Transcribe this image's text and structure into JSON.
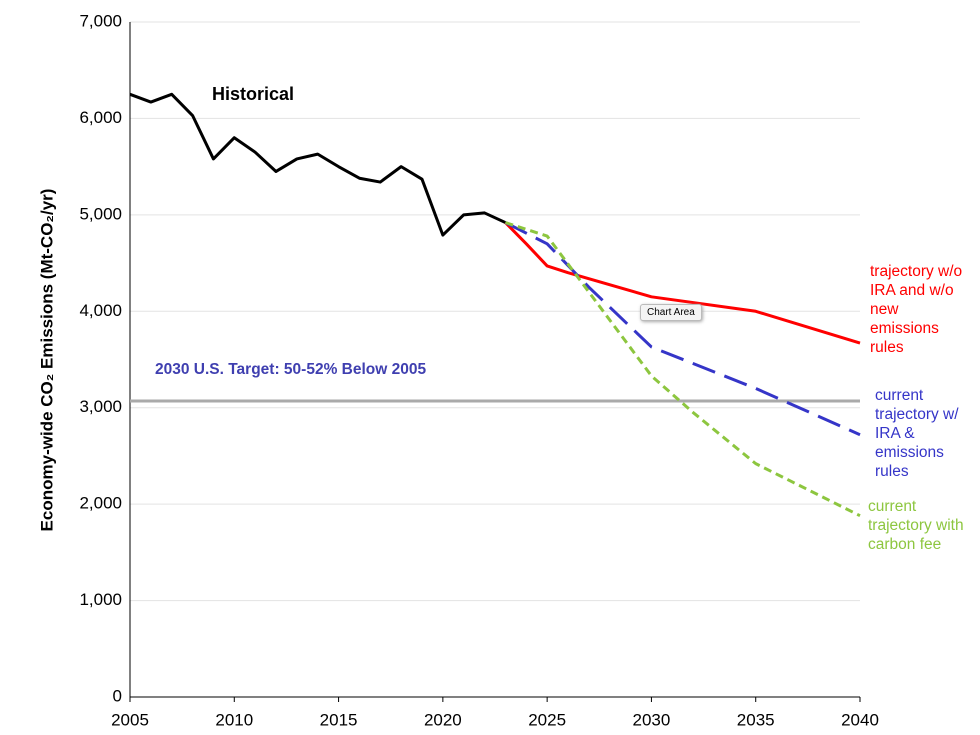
{
  "chart_data": {
    "type": "line",
    "ylabel": "Economy-wide CO₂ Emissions (Mt-CO₂/yr)",
    "xlim": [
      2005,
      2040
    ],
    "xticks": [
      2005,
      2010,
      2015,
      2020,
      2025,
      2030,
      2035,
      2040
    ],
    "ylim": [
      0,
      7000
    ],
    "yticks": [
      0,
      {
        "value": 1000,
        "label": "1,000"
      },
      {
        "value": 2000,
        "label": "2,000"
      },
      {
        "value": 3000,
        "label": "3,000"
      },
      {
        "value": 4000,
        "label": "4,000"
      },
      {
        "value": 5000,
        "label": "5,000"
      },
      {
        "value": 6000,
        "label": "6,000"
      },
      {
        "value": 7000,
        "label": "7,000"
      }
    ],
    "grid": true,
    "annotation": "Historical",
    "tooltip": "Chart Area",
    "target": {
      "value": 3070,
      "label": "2030 U.S. Target: 50-52% Below 2005",
      "color": "#aaaaaa"
    },
    "series": [
      {
        "name": "Historical",
        "color": "#000000",
        "dash": "solid",
        "x": [
          2005,
          2006,
          2007,
          2008,
          2009,
          2010,
          2011,
          2012,
          2013,
          2014,
          2015,
          2016,
          2017,
          2018,
          2019,
          2020,
          2021,
          2022,
          2023
        ],
        "values": [
          6250,
          6170,
          6250,
          6030,
          5580,
          5800,
          5650,
          5450,
          5580,
          5630,
          5500,
          5380,
          5340,
          5500,
          5370,
          4790,
          5000,
          5020,
          4920
        ]
      },
      {
        "name": "trajectory w/o IRA and w/o new emissions rules",
        "color": "#ff0000",
        "dash": "solid",
        "x": [
          2023,
          2024,
          2025,
          2026,
          2030,
          2035,
          2040
        ],
        "values": [
          4920,
          4700,
          4470,
          4400,
          4150,
          4000,
          3670
        ]
      },
      {
        "name": "current trajectory w/ IRA & emissions rules",
        "color": "#3535c8",
        "dash": "dashed",
        "x": [
          2023,
          2025,
          2027,
          2030,
          2035,
          2040
        ],
        "values": [
          4920,
          4700,
          4250,
          3630,
          3200,
          2720
        ]
      },
      {
        "name": "current trajectory with carbon fee",
        "color": "#8dc63f",
        "dash": "dotted",
        "x": [
          2023,
          2025,
          2027,
          2030,
          2032,
          2035,
          2040
        ],
        "values": [
          4920,
          4780,
          4200,
          3330,
          2950,
          2420,
          1880
        ]
      }
    ]
  }
}
